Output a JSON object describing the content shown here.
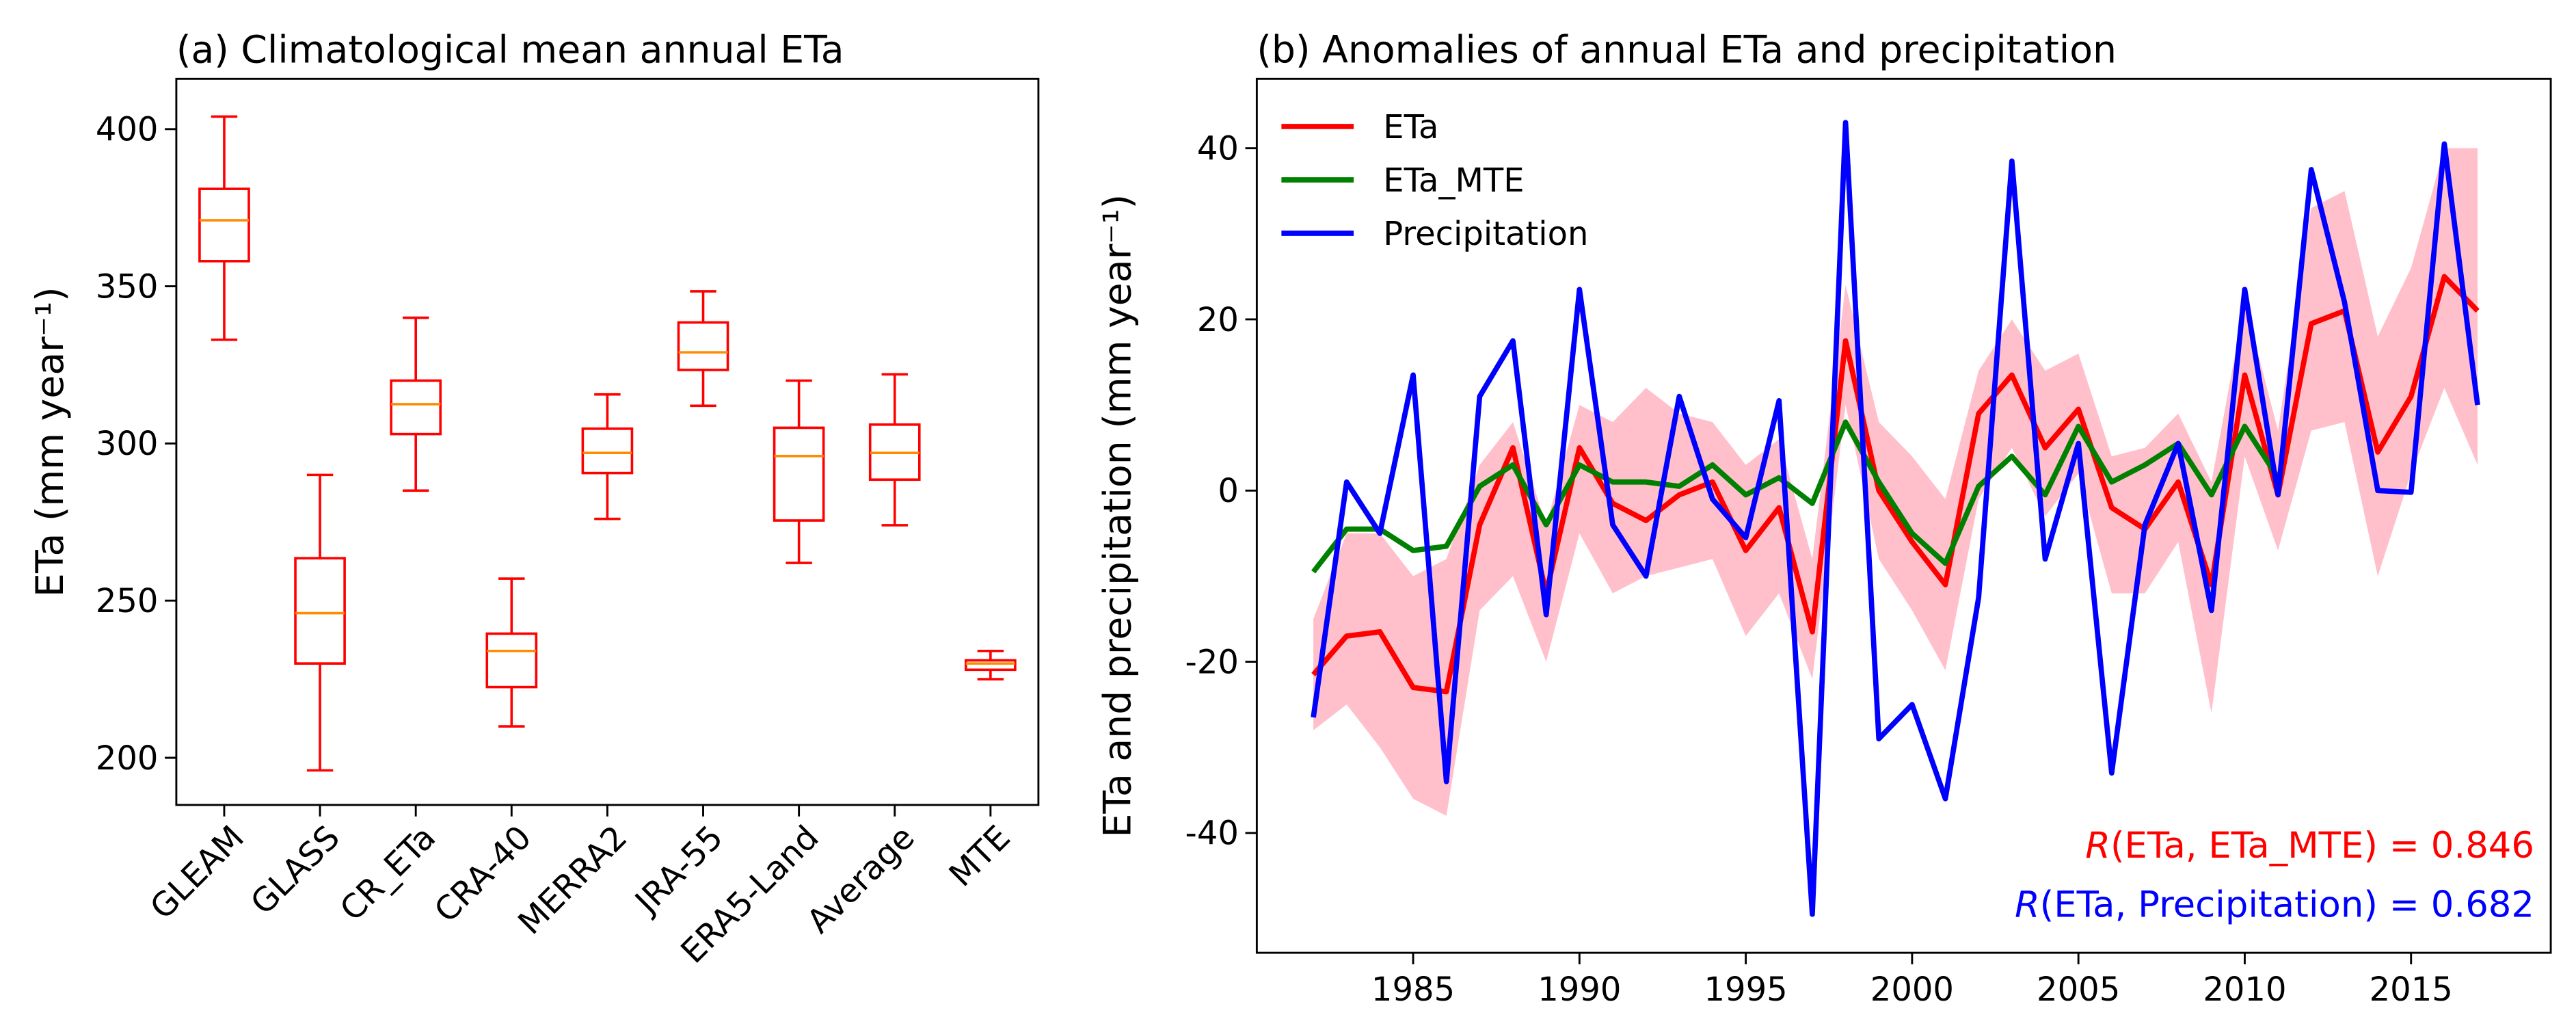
{
  "chart_data": [
    {
      "type": "box",
      "title": "(a) Climatological mean annual ETa",
      "ylabel": "ETa (mm year⁻¹)",
      "categories": [
        "GLEAM",
        "GLASS",
        "CR_ETa",
        "CRA-40",
        "MERRA2",
        "JRA-55",
        "ERA5-Land",
        "Average",
        "MTE"
      ],
      "boxes": [
        {
          "whislo": 333,
          "q1": 358,
          "med": 371,
          "q3": 381,
          "whishi": 404
        },
        {
          "whislo": 196,
          "q1": 230,
          "med": 246,
          "q3": 263.5,
          "whishi": 290
        },
        {
          "whislo": 285,
          "q1": 303,
          "med": 312.5,
          "q3": 320,
          "whishi": 340
        },
        {
          "whislo": 210,
          "q1": 222.5,
          "med": 234,
          "q3": 239.5,
          "whishi": 257
        },
        {
          "whislo": 276,
          "q1": 290.6,
          "med": 297,
          "q3": 304.7,
          "whishi": 315.6
        },
        {
          "whislo": 312,
          "q1": 323.4,
          "med": 329,
          "q3": 338.5,
          "whishi": 348.4
        },
        {
          "whislo": 262,
          "q1": 275.5,
          "med": 296,
          "q3": 305,
          "whishi": 320
        },
        {
          "whislo": 274,
          "q1": 288.5,
          "med": 297,
          "q3": 306,
          "whishi": 322
        },
        {
          "whislo": 225,
          "q1": 228,
          "med": 230,
          "q3": 231,
          "whishi": 234
        }
      ],
      "color": "#ff0000",
      "median_color": "#ff8c00",
      "ylim": [
        185,
        416
      ],
      "yticks": [
        200,
        250,
        300,
        350,
        400
      ]
    },
    {
      "type": "line",
      "title": "(b) Anomalies of annual ETa and precipitation",
      "ylabel": "ETa and precipitation (mm year⁻¹)",
      "x": [
        1982,
        1983,
        1984,
        1985,
        1986,
        1987,
        1988,
        1989,
        1990,
        1991,
        1992,
        1993,
        1994,
        1995,
        1996,
        1997,
        1998,
        1999,
        2000,
        2001,
        2002,
        2003,
        2004,
        2005,
        2006,
        2007,
        2008,
        2009,
        2010,
        2011,
        2012,
        2013,
        2014,
        2015,
        2016,
        2017
      ],
      "band": {
        "color": "#ffc0cb",
        "lower": [
          -28,
          -25,
          -30,
          -36,
          -38,
          -14,
          -10,
          -20,
          -5,
          -12,
          -10,
          -9,
          -8,
          -17,
          -12,
          -22,
          10,
          -8,
          -14,
          -21,
          -1,
          5,
          -3,
          2,
          -12,
          -12,
          -6,
          -26,
          4,
          -7,
          7,
          8,
          -10,
          2,
          12,
          3
        ],
        "upper": [
          -15,
          -5,
          -5,
          -10,
          -8,
          3,
          8,
          -4,
          10,
          8,
          12,
          9,
          8,
          3,
          6,
          -8,
          24,
          8,
          4,
          -1,
          14,
          20,
          14,
          16,
          4,
          5,
          9,
          1,
          22,
          7,
          33,
          35,
          18,
          26,
          40,
          40
        ]
      },
      "series": [
        {
          "name": "ETa",
          "color": "#ff0000",
          "values": [
            -21.5,
            -17,
            -16.5,
            -23,
            -23.5,
            -4,
            5,
            -12,
            5,
            -1.5,
            -3.5,
            -0.5,
            1,
            -7,
            -2,
            -16.5,
            17.5,
            0,
            -6,
            -11,
            9,
            13.5,
            5,
            9.5,
            -2,
            -4.5,
            1,
            -11,
            13.5,
            -0.5,
            19.5,
            21,
            4.5,
            11,
            25,
            21
          ]
        },
        {
          "name": "ETa_MTE",
          "color": "#008000",
          "values": [
            -9.5,
            -4.5,
            -4.5,
            -7,
            -6.5,
            0.5,
            3,
            -4,
            3,
            1,
            1,
            0.5,
            3,
            -0.5,
            1.5,
            -1.5,
            8,
            1,
            -5,
            -8.5,
            0.5,
            4,
            -0.5,
            7.5,
            1,
            3,
            5.5,
            -0.5,
            7.5,
            1.5,
            null,
            null,
            null,
            null,
            null,
            null
          ]
        },
        {
          "name": "Precipitation",
          "color": "#0000ff",
          "values": [
            -26.5,
            1,
            -5,
            13.5,
            -34,
            11,
            17.5,
            -14.5,
            23.5,
            -4,
            -10,
            11,
            -1,
            -5.5,
            10.5,
            -49.5,
            43,
            -29,
            -25,
            -36,
            -12.5,
            38.5,
            -8,
            5.5,
            -33,
            -4,
            5.5,
            -14,
            23.5,
            -0.5,
            37.5,
            22,
            0,
            -0.2,
            40.5,
            10
          ]
        }
      ],
      "legend": "upper left",
      "annotations": [
        {
          "prefix": "R",
          "text": "(ETa, ETa_MTE) = 0.846",
          "color": "#ff0000"
        },
        {
          "prefix": "R",
          "text": "(ETa, Precipitation) = 0.682",
          "color": "#0000ff"
        }
      ],
      "xlim": [
        1980.3,
        2019.2
      ],
      "xticks": [
        1985,
        1990,
        1995,
        2000,
        2005,
        2010,
        2015
      ],
      "ylim": [
        -54,
        48.1
      ],
      "yticks": [
        -40,
        -20,
        0,
        20,
        40
      ]
    }
  ]
}
